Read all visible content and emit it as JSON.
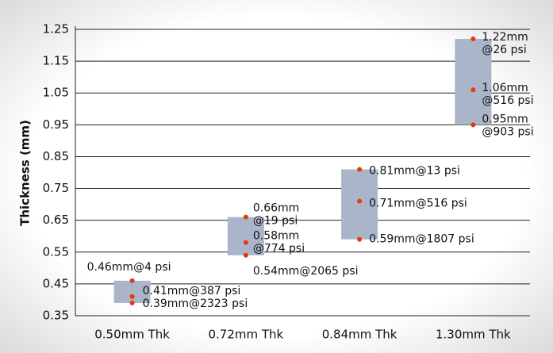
{
  "chart_data": {
    "type": "range_points",
    "ylabel": "Thickness (mm)",
    "categories": [
      "0.50mm Thk",
      "0.72mm Thk",
      "0.84mm Thk",
      "1.30mm Thk"
    ],
    "values": [
      [
        0.46,
        0.41,
        0.39
      ],
      [
        0.66,
        0.58,
        0.54
      ],
      [
        0.81,
        0.71,
        0.59
      ],
      [
        1.22,
        1.06,
        0.95
      ]
    ],
    "value_labels": [
      [
        [
          "0.46mm@4 psi"
        ],
        [
          "0.41mm@387 psi"
        ],
        [
          "0.39mm@2323 psi"
        ]
      ],
      [
        [
          "0.66mm",
          "@19 psi"
        ],
        [
          "0.58mm",
          "@774 psi"
        ],
        [
          "0.54mm@2065 psi"
        ]
      ],
      [
        [
          "0.81mm@13 psi"
        ],
        [
          "0.71mm@516 psi"
        ],
        [
          "0.59mm@1807 psi"
        ]
      ],
      [
        [
          "1.22mm",
          "@26 psi"
        ],
        [
          "1.06mm",
          "@516 psi"
        ],
        [
          "0.95mm",
          "@903 psi"
        ]
      ]
    ],
    "ylim": [
      0.35,
      1.25
    ],
    "yticks": [
      0.35,
      0.45,
      0.55,
      0.65,
      0.75,
      0.85,
      0.95,
      1.05,
      1.15,
      1.25
    ],
    "grid": true,
    "box_color": "#aab5c9",
    "point_color": "#e8380d"
  }
}
